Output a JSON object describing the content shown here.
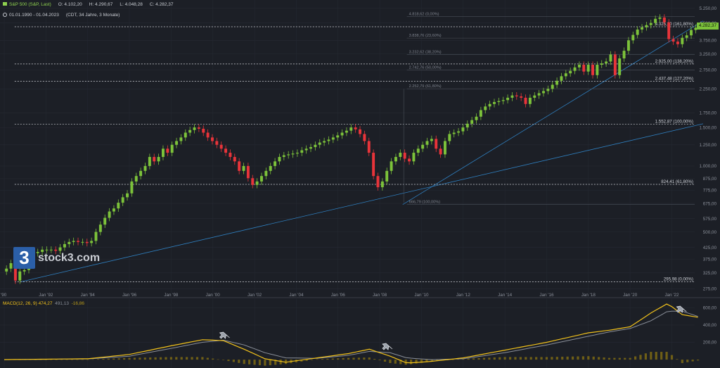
{
  "header": {
    "symbol": "S&P 500 (S&P, Last)",
    "open": "O: 4.102,20",
    "high": "H: 4.290,67",
    "low": "L: 4.048,28",
    "close": "C: 4.282,37",
    "range": "01.01.1990 - 01.04.2023",
    "meta": "(CDT, 34 Jahre, 3 Monate)"
  },
  "logo": {
    "mark": "3",
    "text": "stock3.com"
  },
  "macd_legend": {
    "macd": "MACD(12, 26, 9)  474,27",
    "signal": "491,13",
    "histogram": "-16,86"
  },
  "price_badge": "4.282,37",
  "colors": {
    "background": "#1c1f26",
    "up": "#7cc23a",
    "down": "#e8343a",
    "macd": "#f2c21b",
    "signal": "#8a8f99",
    "histogram": "#6e5e16",
    "trend": "#2f7fbf"
  },
  "chart_data": {
    "type": "candlestick",
    "y_scale": "log",
    "y_ticks": [
      "5.250,00",
      "4.500,00",
      "3.750,00",
      "3.250,00",
      "2.750,00",
      "2.250,00",
      "1.750,00",
      "1.500,00",
      "1.250,00",
      "1.000,00",
      "875,00",
      "775,00",
      "675,00",
      "575,00",
      "500,00",
      "425,00",
      "375,00",
      "325,00",
      "275,00"
    ],
    "y_tick_values": [
      5250,
      4500,
      3750,
      3250,
      2750,
      2250,
      1750,
      1500,
      1250,
      1000,
      875,
      775,
      675,
      575,
      500,
      425,
      375,
      325,
      275
    ],
    "x_ticks": [
      "'90",
      "Jan '92",
      "Jan '94",
      "Jan '96",
      "Jan '98",
      "Jan '00",
      "Jan '02",
      "Jan '04",
      "Jan '06",
      "Jan '08",
      "Jan '10",
      "Jan '12",
      "Jan '14",
      "Jan '16",
      "Jan '18",
      "Jan '20",
      "Jan '22"
    ],
    "x_tick_years": [
      1990,
      1992,
      1994,
      1996,
      1998,
      2000,
      2002,
      2004,
      2006,
      2008,
      2010,
      2012,
      2014,
      2016,
      2018,
      2020,
      2022
    ],
    "x_range": [
      1990,
      2023.5
    ],
    "closes": [
      340,
      360,
      300,
      330,
      335,
      375,
      400,
      405,
      415,
      415,
      415,
      410,
      425,
      440,
      450,
      455,
      450,
      450,
      445,
      455,
      500,
      540,
      580,
      620,
      640,
      680,
      720,
      750,
      850,
      900,
      950,
      1000,
      1100,
      1050,
      1100,
      1200,
      1150,
      1250,
      1300,
      1350,
      1420,
      1460,
      1500,
      1480,
      1420,
      1350,
      1300,
      1250,
      1200,
      1150,
      1100,
      1050,
      950,
      1000,
      880,
      820,
      850,
      900,
      950,
      1000,
      1050,
      1100,
      1120,
      1130,
      1140,
      1150,
      1180,
      1200,
      1220,
      1250,
      1280,
      1300,
      1320,
      1350,
      1380,
      1420,
      1450,
      1500,
      1470,
      1400,
      1300,
      1150,
      900,
      800,
      850,
      950,
      1050,
      1100,
      1150,
      1080,
      1050,
      1150,
      1200,
      1250,
      1300,
      1330,
      1200,
      1130,
      1300,
      1400,
      1420,
      1440,
      1500,
      1560,
      1620,
      1680,
      1800,
      1870,
      1920,
      1960,
      1980,
      2000,
      2050,
      2100,
      2080,
      2050,
      1920,
      2050,
      2100,
      2150,
      2200,
      2250,
      2350,
      2450,
      2570,
      2650,
      2720,
      2820,
      2900,
      2700,
      2900,
      2600,
      2900,
      2940,
      3000,
      3230,
      2600,
      3100,
      3360,
      3750,
      3970,
      4200,
      4300,
      4400,
      4500,
      4700,
      4766,
      4530,
      3800,
      3700,
      3600,
      3850,
      3950,
      4180,
      4282
    ],
    "fib_levels": [
      {
        "label": "4.325,30 (161,80%)",
        "value": 4325.3,
        "dashed": true
      },
      {
        "label": "2.925,00 (138,20%)",
        "value": 2925.0,
        "dashed": true
      },
      {
        "label": "2.437,48 (127,20%)",
        "value": 2437.48,
        "dashed": true
      },
      {
        "label": "1.552,87 (100,00%)",
        "value": 1552.87,
        "dashed": true
      },
      {
        "label": "824,41 (61,80%)",
        "value": 824.41,
        "dashed": true
      },
      {
        "label": "295,98 (0,00%)",
        "value": 295.98,
        "dashed": true
      }
    ],
    "fib_levels_2": [
      {
        "label": "4.818,62 (0,00%)",
        "value": 4818.62
      },
      {
        "label": "3.838,76 (23,60%)",
        "value": 3838.76
      },
      {
        "label": "3.232,62 (38,20%)",
        "value": 3232.62
      },
      {
        "label": "2.742,76 (50,00%)",
        "value": 2742.76
      },
      {
        "label": "2.252,79 (61,80%)",
        "value": 2252.79
      },
      {
        "label": "666,79 (100,00%)",
        "value": 666.79
      }
    ],
    "macd": {
      "y_ticks": [
        "600,00",
        "400,00",
        "200,00"
      ],
      "y_tick_values": [
        600,
        400,
        200
      ],
      "ylim": [
        -40,
        660
      ],
      "macd_points": [
        [
          1990,
          0
        ],
        [
          1992,
          5
        ],
        [
          1994,
          10
        ],
        [
          1996,
          60
        ],
        [
          1998,
          160
        ],
        [
          1999.5,
          230
        ],
        [
          2000.5,
          220
        ],
        [
          2001.5,
          120
        ],
        [
          2002.5,
          10
        ],
        [
          2003.5,
          -30
        ],
        [
          2005,
          20
        ],
        [
          2006.5,
          70
        ],
        [
          2007.5,
          120
        ],
        [
          2008.5,
          40
        ],
        [
          2009.3,
          -40
        ],
        [
          2010.5,
          -20
        ],
        [
          2012,
          20
        ],
        [
          2014,
          110
        ],
        [
          2016,
          200
        ],
        [
          2018,
          310
        ],
        [
          2019,
          340
        ],
        [
          2020,
          380
        ],
        [
          2021,
          540
        ],
        [
          2021.8,
          650
        ],
        [
          2022.5,
          520
        ],
        [
          2023.25,
          490
        ]
      ],
      "signal_points": [
        [
          1990,
          0
        ],
        [
          1992,
          4
        ],
        [
          1994,
          8
        ],
        [
          1996,
          40
        ],
        [
          1998,
          130
        ],
        [
          1999.5,
          200
        ],
        [
          2000.5,
          225
        ],
        [
          2001.5,
          170
        ],
        [
          2002.5,
          80
        ],
        [
          2003.5,
          20
        ],
        [
          2005,
          15
        ],
        [
          2006.5,
          50
        ],
        [
          2007.5,
          95
        ],
        [
          2008.5,
          80
        ],
        [
          2009.3,
          20
        ],
        [
          2010.5,
          0
        ],
        [
          2012,
          10
        ],
        [
          2014,
          80
        ],
        [
          2016,
          170
        ],
        [
          2018,
          270
        ],
        [
          2019,
          320
        ],
        [
          2020,
          360
        ],
        [
          2021,
          450
        ],
        [
          2021.8,
          560
        ],
        [
          2022.5,
          560
        ],
        [
          2023.25,
          500
        ]
      ]
    }
  }
}
